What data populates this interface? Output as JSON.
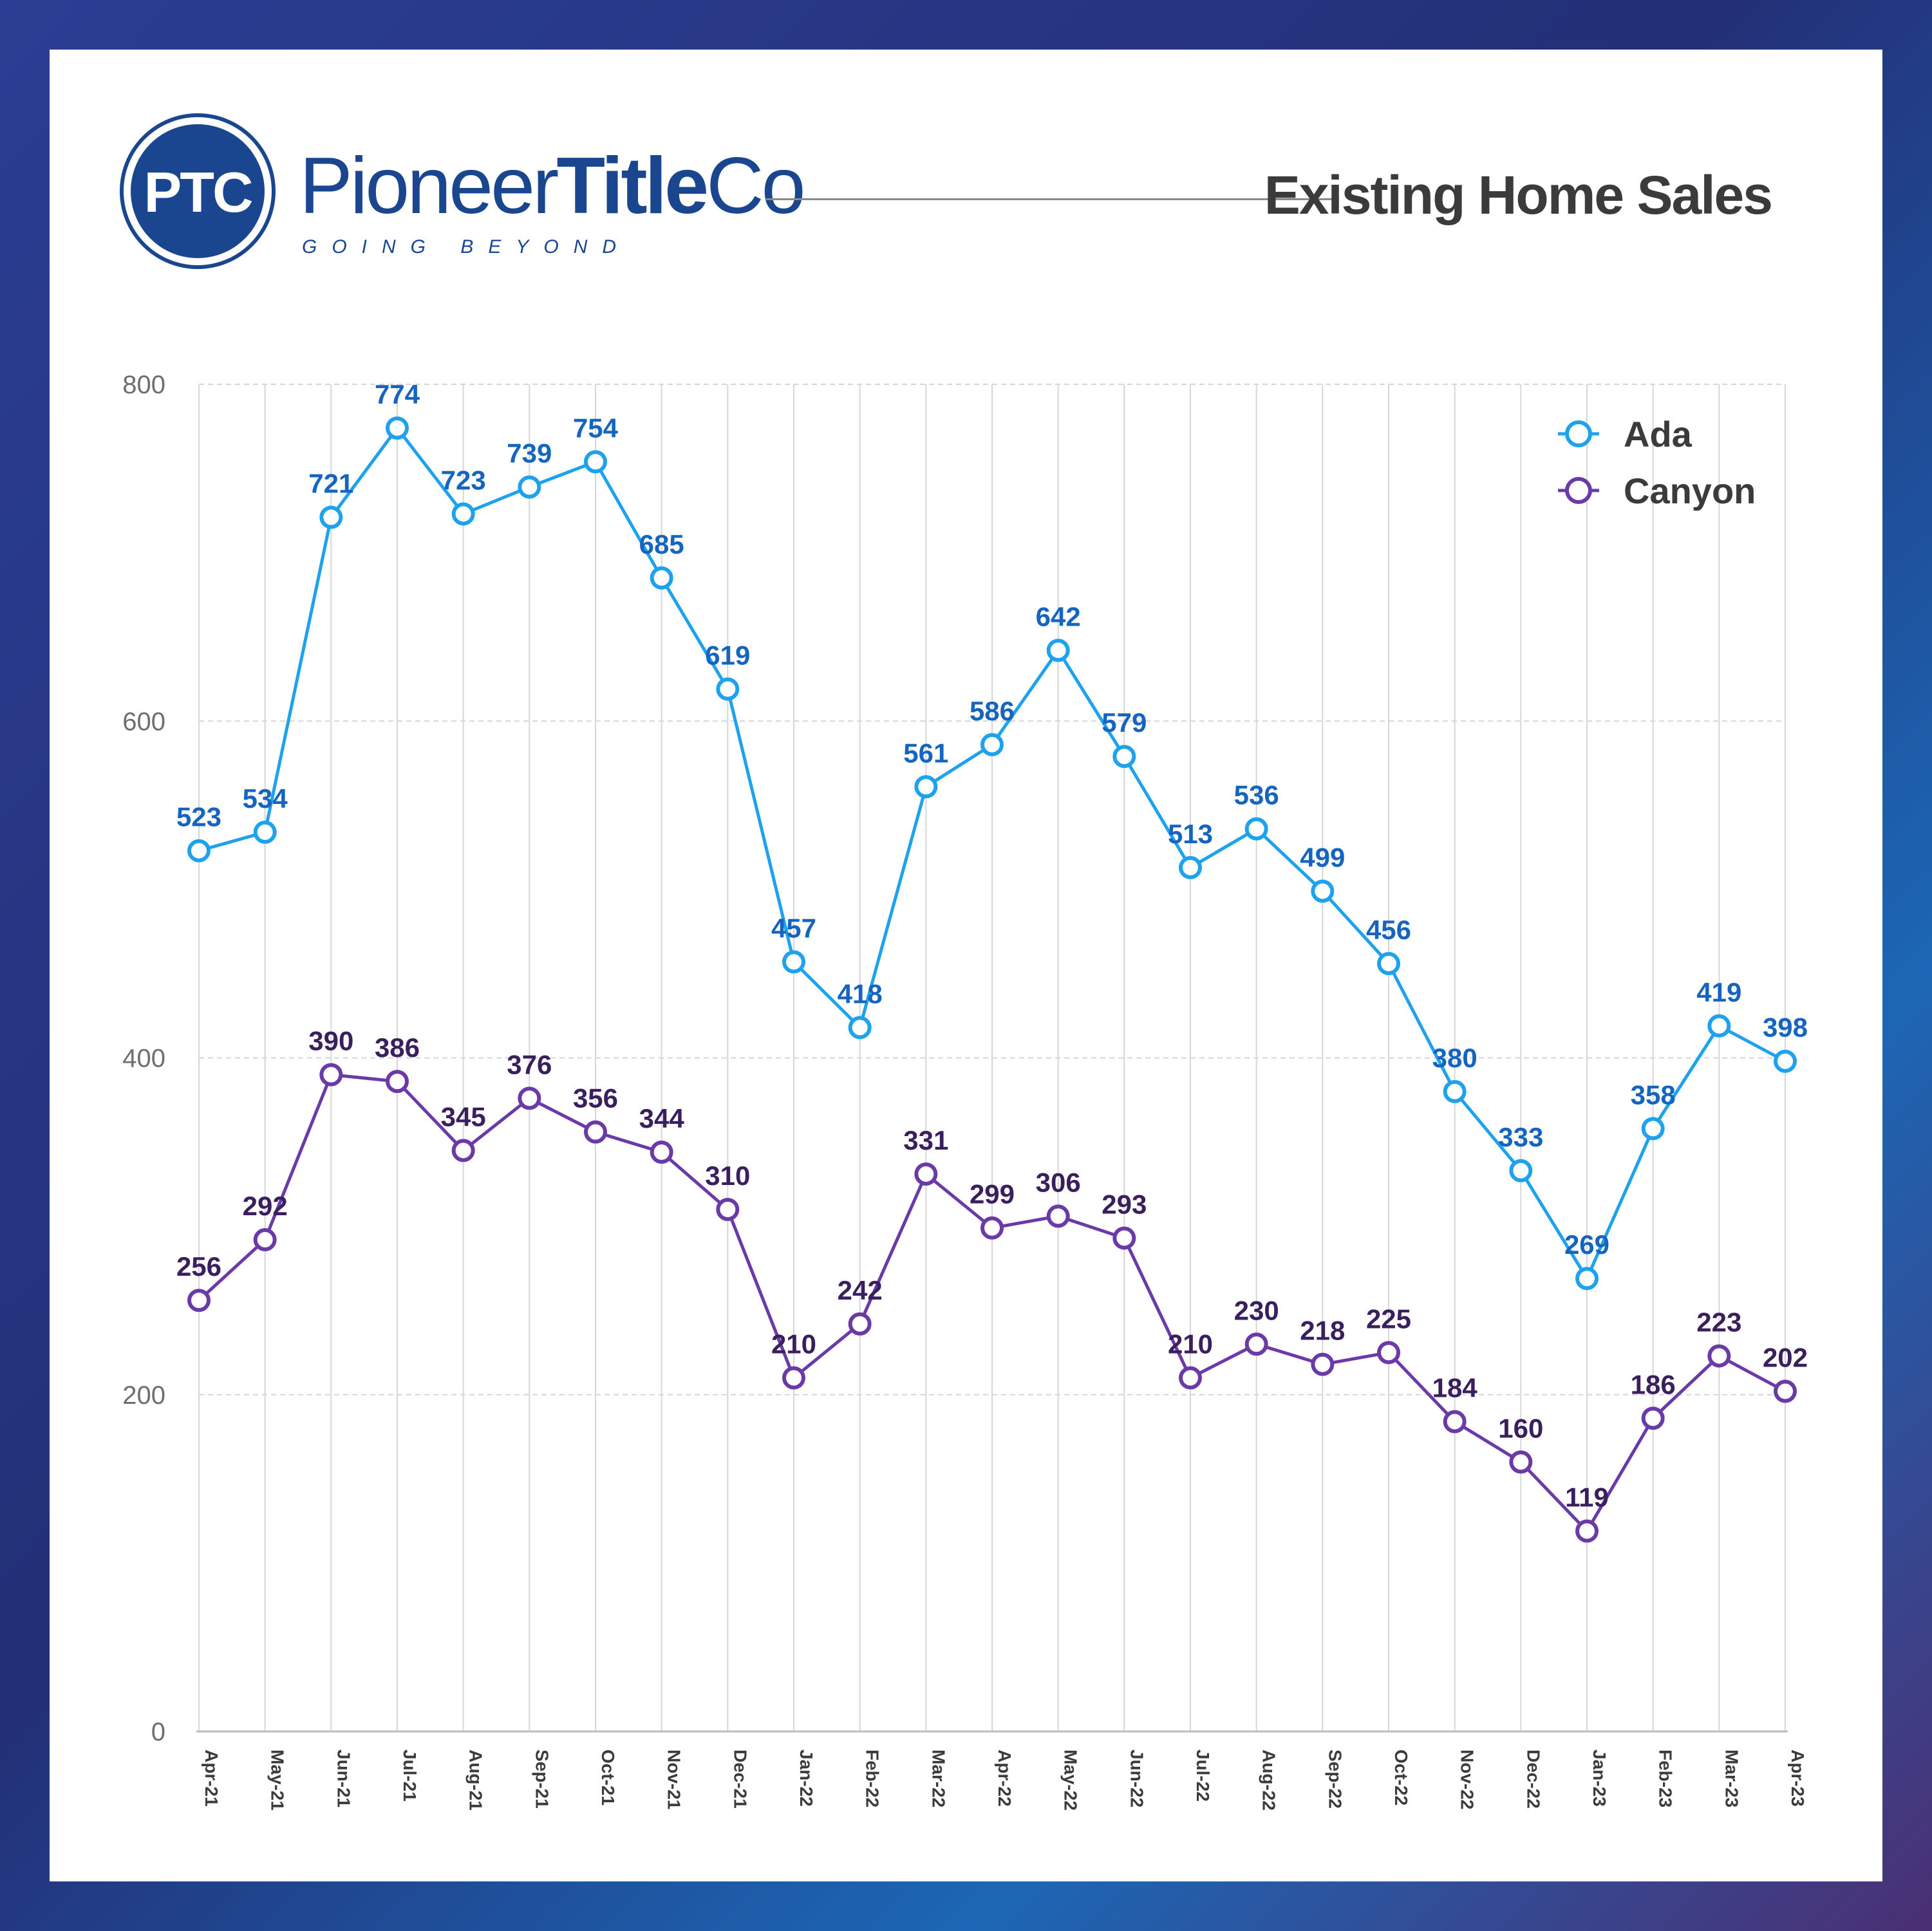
{
  "header": {
    "logo_mark": "PTC",
    "brand_regular": "Pioneer",
    "brand_bold": "Title",
    "brand_suffix": "Co",
    "tagline": "GOING BEYOND",
    "title": "Existing Home Sales"
  },
  "colors": {
    "brand_navy": "#1a468f",
    "ada": "#1fa2ee",
    "ada_label": "#1565c0",
    "canyon": "#6a3aa8",
    "canyon_label": "#3a1f5e",
    "axis_text": "#6e6e6e",
    "grid": "#d6d6d6"
  },
  "chart_data": {
    "type": "line",
    "title": "Existing Home Sales",
    "xlabel": "",
    "ylabel": "",
    "ylim": [
      0,
      800
    ],
    "yticks": [
      0,
      200,
      400,
      600,
      800
    ],
    "grid": true,
    "legend": "top-right",
    "categories": [
      "Apr-21",
      "May-21",
      "Jun-21",
      "Jul-21",
      "Aug-21",
      "Sep-21",
      "Oct-21",
      "Nov-21",
      "Dec-21",
      "Jan-22",
      "Feb-22",
      "Mar-22",
      "Apr-22",
      "May-22",
      "Jun-22",
      "Jul-22",
      "Aug-22",
      "Sep-22",
      "Oct-22",
      "Nov-22",
      "Dec-22",
      "Jan-23",
      "Feb-23",
      "Mar-23",
      "Apr-23"
    ],
    "series": [
      {
        "name": "Ada",
        "values": [
          523,
          534,
          721,
          774,
          723,
          739,
          754,
          685,
          619,
          457,
          418,
          561,
          586,
          642,
          579,
          513,
          536,
          499,
          456,
          380,
          333,
          269,
          358,
          419,
          398
        ]
      },
      {
        "name": "Canyon",
        "values": [
          256,
          292,
          390,
          386,
          345,
          376,
          356,
          344,
          310,
          210,
          242,
          331,
          299,
          306,
          293,
          210,
          230,
          218,
          225,
          184,
          160,
          119,
          186,
          223,
          202
        ]
      }
    ]
  }
}
